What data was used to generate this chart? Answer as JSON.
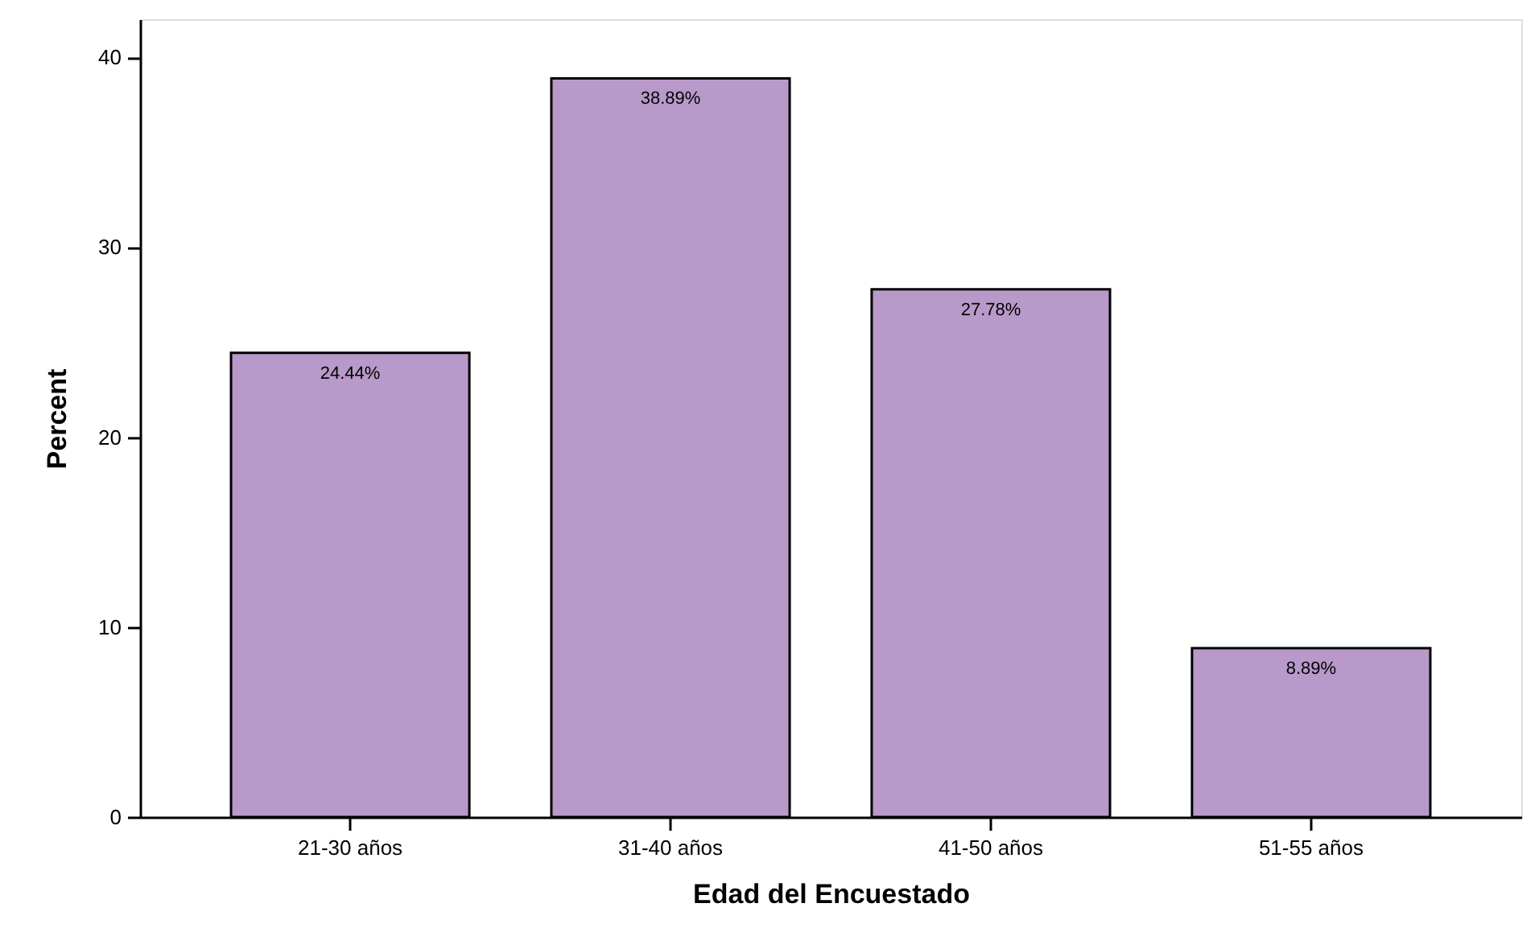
{
  "chart_data": {
    "type": "bar",
    "xlabel": "Edad del Encuestado",
    "ylabel": "Percent",
    "categories": [
      "21-30 años",
      "31-40 años",
      "41-50 años",
      "51-55 años"
    ],
    "values": [
      24.44,
      38.89,
      27.78,
      8.89
    ],
    "value_labels": [
      "24.44%",
      "38.89%",
      "27.78%",
      "8.89%"
    ],
    "color": "#b899c9",
    "ylim": [
      0,
      42
    ],
    "yticks": [
      0,
      10,
      20,
      30,
      40
    ],
    "grid": false
  }
}
